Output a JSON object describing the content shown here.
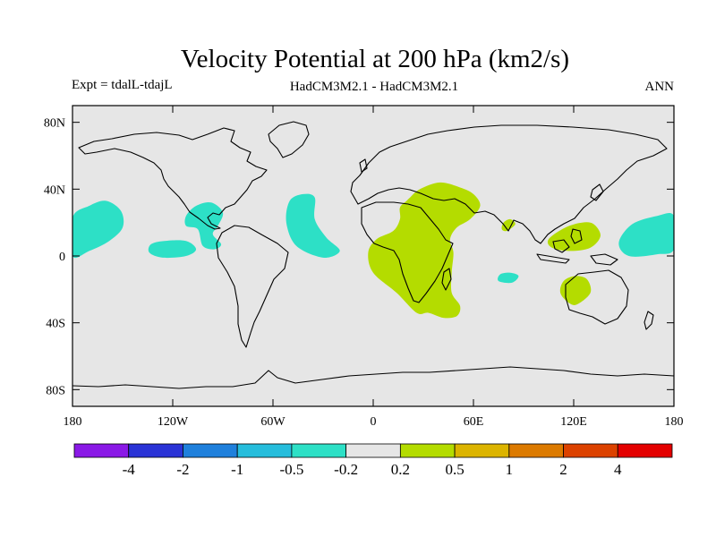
{
  "chart_data": {
    "type": "heatmap",
    "title": "Velocity Potential at 200 hPa (km2/s)",
    "left_label": "Expt = tdalL-tdajL",
    "center_label": "HadCM3M2.1 - HadCM3M2.1",
    "right_label": "ANN",
    "x_ticks": [
      {
        "value": -180,
        "label": "180"
      },
      {
        "value": -120,
        "label": "120W"
      },
      {
        "value": -60,
        "label": "60W"
      },
      {
        "value": 0,
        "label": "0"
      },
      {
        "value": 60,
        "label": "60E"
      },
      {
        "value": 120,
        "label": "120E"
      },
      {
        "value": 180,
        "label": "180"
      }
    ],
    "y_ticks": [
      {
        "value": 80,
        "label": "80N"
      },
      {
        "value": 40,
        "label": "40N"
      },
      {
        "value": 0,
        "label": "0"
      },
      {
        "value": -40,
        "label": "40S"
      },
      {
        "value": -80,
        "label": "80S"
      }
    ],
    "xlim": [
      -180,
      180
    ],
    "ylim": [
      -90,
      90
    ],
    "background_color": "#e6e6e6",
    "colorbar": {
      "colors": [
        "#8a19e6",
        "#2a33d6",
        "#1f80dc",
        "#26bddc",
        "#2de0c6",
        "#e6e6e6",
        "#b4dc00",
        "#dcb400",
        "#dc7a00",
        "#dc4200",
        "#e30000"
      ],
      "labels": [
        "-4",
        "-2",
        "-1",
        "-0.5",
        "-0.2",
        "0.2",
        "0.5",
        "1",
        "2",
        "4"
      ]
    },
    "regions": [
      {
        "name": "negative-central-pacific",
        "color": "#2de0c6",
        "points": [
          [
            -180,
            23
          ],
          [
            -170,
            30
          ],
          [
            -160,
            33
          ],
          [
            -151,
            27
          ],
          [
            -150,
            17
          ],
          [
            -158,
            9
          ],
          [
            -170,
            3
          ],
          [
            -180,
            0
          ]
        ]
      },
      {
        "name": "negative-east-pacific",
        "color": "#2de0c6",
        "points": [
          [
            -133,
            7
          ],
          [
            -125,
            9
          ],
          [
            -112,
            9
          ],
          [
            -106,
            4
          ],
          [
            -112,
            0
          ],
          [
            -126,
            -1
          ],
          [
            -134,
            2
          ]
        ]
      },
      {
        "name": "negative-central-america",
        "color": "#2de0c6",
        "points": [
          [
            -112,
            24
          ],
          [
            -106,
            30
          ],
          [
            -97,
            32
          ],
          [
            -90,
            26
          ],
          [
            -93,
            18
          ],
          [
            -96,
            13
          ],
          [
            -91,
            7
          ],
          [
            -95,
            4
          ],
          [
            -102,
            6
          ],
          [
            -105,
            16
          ],
          [
            -112,
            18
          ]
        ]
      },
      {
        "name": "negative-atlantic",
        "color": "#2de0c6",
        "points": [
          [
            -50,
            33
          ],
          [
            -42,
            37
          ],
          [
            -35,
            35
          ],
          [
            -35,
            22
          ],
          [
            -28,
            11
          ],
          [
            -20,
            3
          ],
          [
            -30,
            -1
          ],
          [
            -46,
            6
          ],
          [
            -52,
            20
          ]
        ]
      },
      {
        "name": "negative-west-pacific-east",
        "color": "#2de0c6",
        "points": [
          [
            180,
            24
          ],
          [
            170,
            24
          ],
          [
            155,
            19
          ],
          [
            147,
            8
          ],
          [
            153,
            0
          ],
          [
            170,
            1
          ],
          [
            180,
            4
          ]
        ]
      },
      {
        "name": "negative-indian-ocean",
        "color": "#2de0c6",
        "points": [
          [
            76,
            -11
          ],
          [
            82,
            -10
          ],
          [
            87,
            -12
          ],
          [
            83,
            -16
          ],
          [
            75,
            -15
          ]
        ]
      },
      {
        "name": "positive-africa-arabia",
        "color": "#b4dc00",
        "points": [
          [
            22,
            35
          ],
          [
            28,
            40
          ],
          [
            40,
            44
          ],
          [
            52,
            41
          ],
          [
            60,
            37
          ],
          [
            64,
            30
          ],
          [
            58,
            22
          ],
          [
            50,
            17
          ],
          [
            46,
            10
          ],
          [
            48,
            2
          ],
          [
            47,
            -10
          ],
          [
            47,
            -22
          ],
          [
            52,
            -30
          ],
          [
            50,
            -36
          ],
          [
            42,
            -37
          ],
          [
            33,
            -34
          ],
          [
            26,
            -34
          ],
          [
            14,
            -22
          ],
          [
            0,
            -10
          ],
          [
            -3,
            2
          ],
          [
            2,
            10
          ],
          [
            12,
            15
          ],
          [
            16,
            22
          ],
          [
            16,
            29
          ],
          [
            20,
            33
          ]
        ]
      },
      {
        "name": "positive-india",
        "color": "#b4dc00",
        "points": [
          [
            78,
            20
          ],
          [
            82,
            22
          ],
          [
            85,
            19
          ],
          [
            80,
            15
          ],
          [
            77,
            16
          ]
        ]
      },
      {
        "name": "positive-maritime-continent",
        "color": "#b4dc00",
        "points": [
          [
            105,
            10
          ],
          [
            115,
            17
          ],
          [
            125,
            20
          ],
          [
            132,
            19
          ],
          [
            136,
            12
          ],
          [
            130,
            5
          ],
          [
            118,
            3
          ],
          [
            107,
            5
          ]
        ]
      },
      {
        "name": "positive-australia",
        "color": "#b4dc00",
        "points": [
          [
            114,
            -15
          ],
          [
            121,
            -12
          ],
          [
            128,
            -14
          ],
          [
            130,
            -22
          ],
          [
            122,
            -29
          ],
          [
            117,
            -28
          ],
          [
            112,
            -22
          ]
        ]
      }
    ]
  }
}
